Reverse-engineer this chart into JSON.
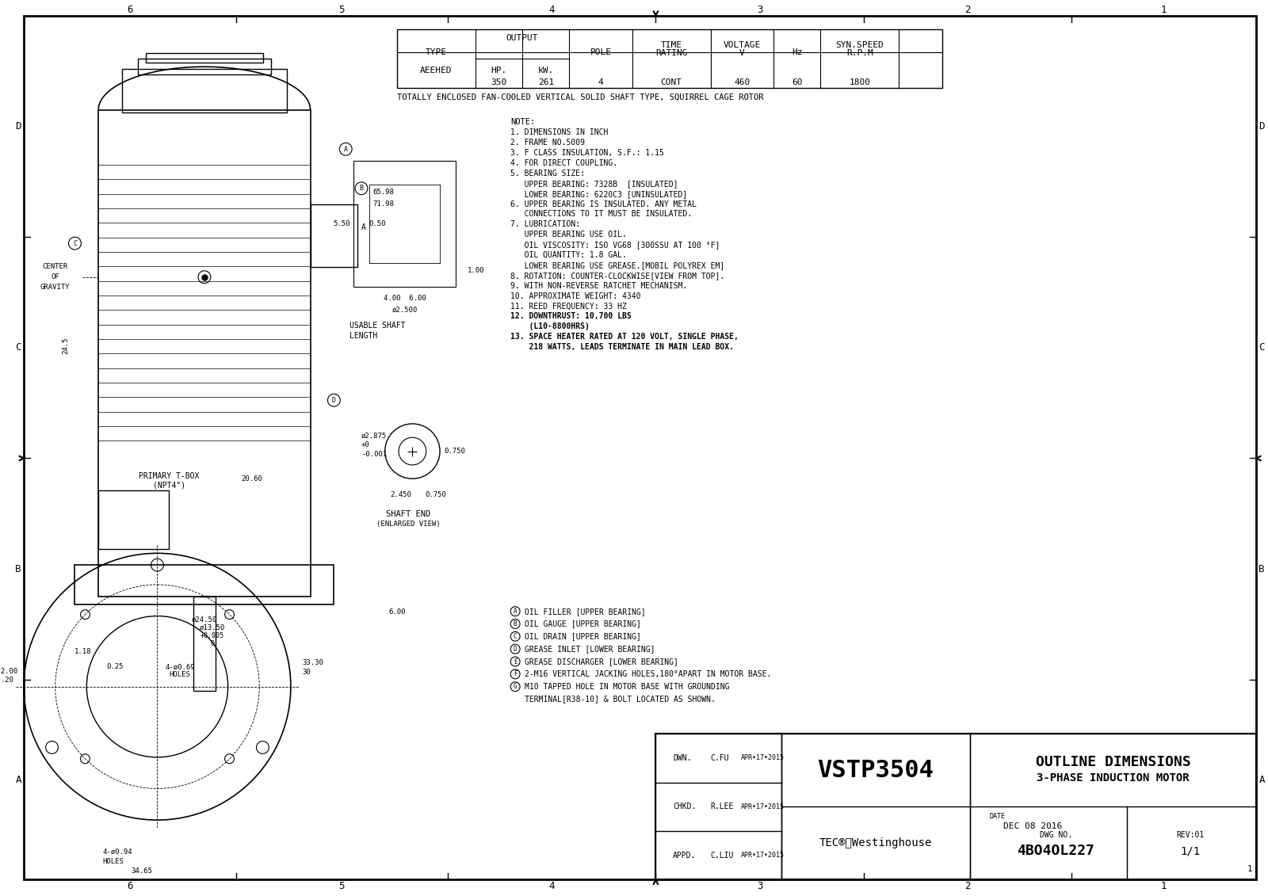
{
  "title": "OUTLINE DIMENSIONS",
  "subtitle": "3-PHASE INDUCTION MOTOR",
  "model": "VSTP3504",
  "dwg_no": "4BO4OL227",
  "rev": "REV:01",
  "date": "DEC 08 2016",
  "dwn": "C.FU",
  "chkd": "R.LEE",
  "appd": "C.LIU",
  "dwn_date": "APR•17•2015",
  "chkd_date": "APR•17•2015",
  "appd_date": "APR•17•2015",
  "table_headers": [
    "TYPE",
    "OUTPUT",
    "POLE",
    "TIME\nRATING",
    "VOLTAGE\nV",
    "Hz",
    "SYN.SPEED\nR.P.M"
  ],
  "table_sub_headers": [
    "HP.",
    "kW."
  ],
  "table_data": [
    "AEEHED",
    "350",
    "261",
    "4",
    "CONT",
    "460",
    "60",
    "1800"
  ],
  "description": "TOTALLY ENCLOSED FAN-COOLED VERTICAL SOLID SHAFT TYPE, SQUIRREL CAGE ROTOR",
  "notes": [
    "1. DIMENSIONS IN INCH",
    "2. FRAME NO.5009",
    "3. F CLASS INSULATION, S.F.: 1.15",
    "4. FOR DIRECT COUPLING.",
    "5. BEARING SIZE:",
    "   UPPER BEARING: 7328B  [INSULATED]",
    "   LOWER BEARING: 6220C3 [UNINSULATED]",
    "6. UPPER BEARING IS INSULATED. ANY METAL",
    "   CONNECTIONS TO IT MUST BE INSULATED.",
    "7. LUBRICATION:",
    "   UPPER BEARING USE OIL.",
    "   OIL VISCOSITY: ISO VG68 [300SSU AT 100 °F]",
    "   OIL QUANTITY: 1.8 GAL.",
    "   LOWER BEARING USE GREASE.[MOBIL POLYREX EM]",
    "8. ROTATION: COUNTER-CLOCKWISE[VIEW FROM TOP].",
    "9. WITH NON-REVERSE RATCHET MECHANISM.",
    "10. APPROXIMATE WEIGHT: 4340",
    "11. REED FREQUENCY: 33 HZ",
    "12. DOWNTHRUST: 10,700 LBS",
    "    (L10-8800HRS)",
    "13. SPACE HEATER RATED AT 120 VOLT, SINGLE PHASE,",
    "    218 WATTS, LEADS TERMINATE IN MAIN LEAD BOX."
  ],
  "legend": [
    "A  OIL FILLER [UPPER BEARING]",
    "B  OIL GAUGE [UPPER BEARING]",
    "C  OIL DRAIN [UPPER BEARING]",
    "D  GREASE INLET [LOWER BEARING]",
    "E  GREASE DISCHARGER [LOWER BEARING]",
    "F  2-M16 VERTICAL JACKING HOLES,180°APART IN MOTOR BASE.",
    "G  M10 TAPPED HOLE IN MOTOR BASE WITH GROUNDING",
    "   TERMINAL[R38-10] & BOLT LOCATED AS SHOWN."
  ],
  "bg_color": "#ffffff",
  "line_color": "#000000",
  "grid_color": "#cccccc",
  "text_color": "#000000",
  "drawing_bg": "#f0f0f0"
}
